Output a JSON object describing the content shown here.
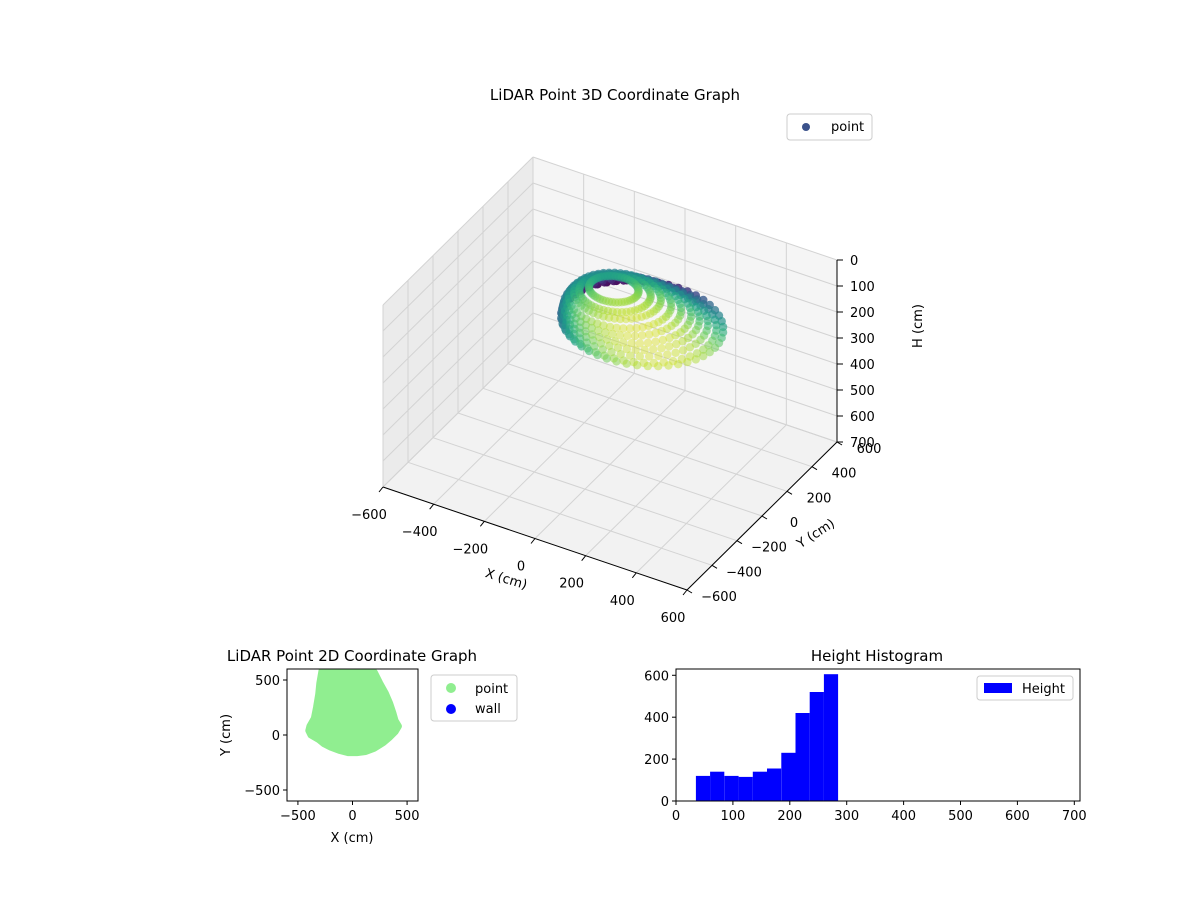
{
  "chart_data": [
    {
      "type": "scatter",
      "projection": "3d",
      "title": "LiDAR Point 3D Coordinate Graph",
      "xlabel": "X (cm)",
      "ylabel": "Y (cm)",
      "zlabel": "H (cm)",
      "xlim": [
        -600,
        600
      ],
      "ylim": [
        -600,
        600
      ],
      "zlim": [
        0,
        700
      ],
      "z_inverted": true,
      "x_ticks": [
        -600,
        -400,
        -200,
        0,
        200,
        400,
        600
      ],
      "y_ticks": [
        -600,
        -400,
        -200,
        0,
        200,
        400,
        600
      ],
      "z_ticks": [
        0,
        100,
        200,
        300,
        400,
        500,
        600,
        700
      ],
      "colormap": "viridis",
      "grid": true,
      "legend": {
        "position": "upper-right",
        "entries": [
          {
            "label": "point",
            "color": "#3b528b"
          }
        ]
      },
      "series": [
        {
          "name": "point",
          "description_points": "dome-shaped point cloud; approx angular rings 0-360 deg, radius 150-550 cm, height 40-280 cm",
          "rings": [
            {
              "h": 40,
              "r": 160,
              "x_off": 0,
              "y_off": 30
            },
            {
              "h": 60,
              "r": 230,
              "x_off": 0,
              "y_off": 40
            },
            {
              "h": 80,
              "r": 280,
              "x_off": 0,
              "y_off": 60
            },
            {
              "h": 110,
              "r": 330,
              "x_off": 0,
              "y_off": 80
            },
            {
              "h": 140,
              "r": 370,
              "x_off": 0,
              "y_off": 110
            },
            {
              "h": 170,
              "r": 410,
              "x_off": 0,
              "y_off": 140
            },
            {
              "h": 200,
              "r": 440,
              "x_off": 0,
              "y_off": 170
            },
            {
              "h": 230,
              "r": 470,
              "x_off": 0,
              "y_off": 200
            },
            {
              "h": 260,
              "r": 500,
              "x_off": 0,
              "y_off": 230
            },
            {
              "h": 280,
              "r": 520,
              "x_off": 0,
              "y_off": 260
            }
          ]
        }
      ]
    },
    {
      "type": "scatter",
      "title": "LiDAR Point 2D Coordinate Graph",
      "xlabel": "X (cm)",
      "ylabel": "Y (cm)",
      "xlim": [
        -600,
        600
      ],
      "ylim": [
        -600,
        600
      ],
      "x_ticks": [
        -500,
        0,
        500
      ],
      "y_ticks": [
        -500,
        0,
        500
      ],
      "legend": {
        "position": "outside-right",
        "entries": [
          {
            "label": "point",
            "color": "#90ee90"
          },
          {
            "label": "wall",
            "color": "#0000ff"
          }
        ]
      },
      "outline": [
        [
          -280,
          580
        ],
        [
          -220,
          600
        ],
        [
          -120,
          620
        ],
        [
          0,
          620
        ],
        [
          100,
          600
        ],
        [
          200,
          570
        ],
        [
          250,
          470
        ],
        [
          300,
          380
        ],
        [
          340,
          290
        ],
        [
          370,
          200
        ],
        [
          390,
          130
        ],
        [
          420,
          80
        ],
        [
          390,
          30
        ],
        [
          340,
          -20
        ],
        [
          280,
          -70
        ],
        [
          200,
          -120
        ],
        [
          120,
          -150
        ],
        [
          40,
          -160
        ],
        [
          -40,
          -160
        ],
        [
          -120,
          -140
        ],
        [
          -200,
          -110
        ],
        [
          -260,
          -80
        ],
        [
          -310,
          -40
        ],
        [
          -380,
          0
        ],
        [
          -400,
          40
        ],
        [
          -390,
          80
        ],
        [
          -350,
          150
        ],
        [
          -330,
          250
        ],
        [
          -310,
          370
        ],
        [
          -300,
          470
        ]
      ]
    },
    {
      "type": "bar",
      "subtype": "histogram",
      "title": "Height Histogram",
      "xlabel": "",
      "ylabel": "",
      "xlim": [
        0,
        710
      ],
      "ylim": [
        0,
        630
      ],
      "x_ticks": [
        0,
        100,
        200,
        300,
        400,
        500,
        600,
        700
      ],
      "y_ticks": [
        0,
        200,
        400,
        600
      ],
      "color": "#0000ff",
      "legend": {
        "position": "upper-right",
        "entries": [
          {
            "label": "Height",
            "color": "#0000ff"
          }
        ]
      },
      "bins": [
        {
          "x0": 35,
          "x1": 60,
          "value": 120
        },
        {
          "x0": 60,
          "x1": 85,
          "value": 140
        },
        {
          "x0": 85,
          "x1": 110,
          "value": 120
        },
        {
          "x0": 110,
          "x1": 135,
          "value": 115
        },
        {
          "x0": 135,
          "x1": 160,
          "value": 140
        },
        {
          "x0": 160,
          "x1": 185,
          "value": 155
        },
        {
          "x0": 185,
          "x1": 210,
          "value": 230
        },
        {
          "x0": 210,
          "x1": 235,
          "value": 420
        },
        {
          "x0": 235,
          "x1": 260,
          "value": 520
        },
        {
          "x0": 260,
          "x1": 285,
          "value": 605
        }
      ]
    }
  ]
}
